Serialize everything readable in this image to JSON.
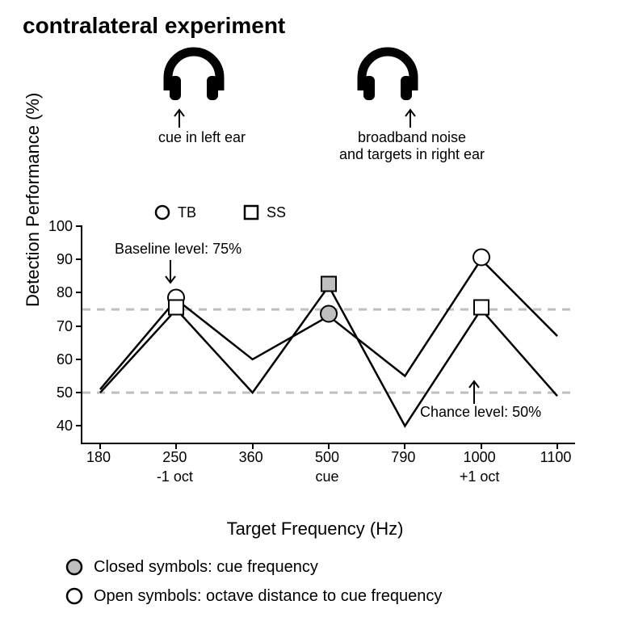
{
  "title": "contralateral experiment",
  "headphones": {
    "left": {
      "label": "cue in left ear",
      "arrow_target": "left"
    },
    "right": {
      "label": "broadband noise\nand targets in right ear",
      "arrow_target": "right"
    }
  },
  "chart": {
    "type": "line",
    "ylabel": "Detection Performance (%)",
    "xlabel": "Target Frequency (Hz)",
    "ylim": [
      35,
      100
    ],
    "yticks": [
      40,
      50,
      60,
      70,
      80,
      90,
      100
    ],
    "x_positions": [
      0,
      1,
      2,
      3,
      4,
      5,
      6
    ],
    "xtick_labels": [
      "180",
      "250",
      "360",
      "500",
      "790",
      "1000",
      "1100"
    ],
    "xtick_sub": {
      "1": "-1 oct",
      "3": "cue",
      "5": "+1 oct"
    },
    "baseline": {
      "value": 75,
      "label": "Baseline level: 75%",
      "color": "#bfbfbf"
    },
    "chance": {
      "value": 50,
      "label": "Chance level: 50%",
      "color": "#bfbfbf"
    },
    "grid_color": "#bfbfbf",
    "line_width": 2.5,
    "line_color": "#000000",
    "series": {
      "TB": {
        "marker": "circle",
        "label": "TB",
        "values": [
          51,
          78,
          60,
          73,
          55,
          90,
          67
        ],
        "closed_at": [
          3
        ],
        "open_at": [
          1,
          5
        ]
      },
      "SS": {
        "marker": "square",
        "label": "SS",
        "values": [
          50,
          75,
          50,
          82,
          40,
          75,
          49
        ],
        "closed_at": [
          3
        ],
        "open_at": [
          1,
          5
        ]
      }
    },
    "marker_size": 15,
    "closed_fill": "#bfbfbf",
    "open_fill": "#ffffff",
    "marker_stroke": "#000000",
    "marker_stroke_w": 2
  },
  "bottom_legend": {
    "closed": "Closed symbols: cue frequency",
    "open": "Open symbols: octave distance to cue frequency"
  }
}
